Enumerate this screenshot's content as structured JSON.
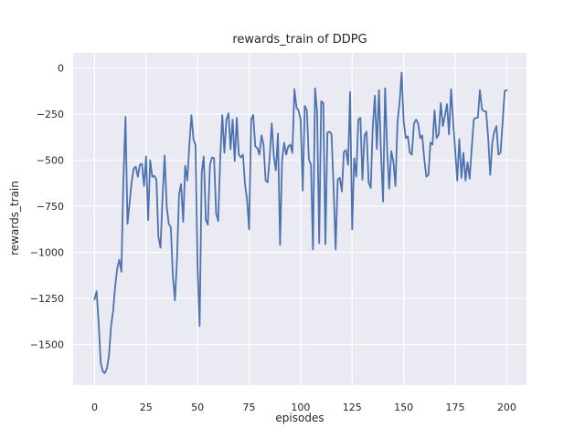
{
  "figure": {
    "title": "rewards_train of DDPG",
    "xlabel": "episodes",
    "ylabel": "rewards_train"
  },
  "chart_data": {
    "type": "line",
    "title": "rewards_train of DDPG",
    "xlabel": "episodes",
    "ylabel": "rewards_train",
    "x_start": 0,
    "x_step": 1,
    "xticks": [
      0,
      25,
      50,
      75,
      100,
      125,
      150,
      175,
      200
    ],
    "yticks": [
      0,
      -250,
      -500,
      -750,
      -1000,
      -1250,
      -1500
    ],
    "xlim": [
      -10.4,
      209.6
    ],
    "ylim": [
      -1720,
      82
    ],
    "grid": true,
    "legend_position": "none",
    "style": {
      "line_color": "#4C72B0",
      "plot_bg": "#EAEAF2",
      "grid_color": "#FFFFFF",
      "text_color": "#262626",
      "fig_bg": "#FFFFFF"
    },
    "values": [
      -1255,
      -1210,
      -1390,
      -1600,
      -1645,
      -1655,
      -1630,
      -1560,
      -1400,
      -1320,
      -1185,
      -1090,
      -1040,
      -1105,
      -610,
      -265,
      -845,
      -730,
      -620,
      -545,
      -535,
      -590,
      -525,
      -520,
      -640,
      -480,
      -825,
      -500,
      -590,
      -585,
      -605,
      -915,
      -975,
      -705,
      -475,
      -750,
      -845,
      -865,
      -1125,
      -1260,
      -1040,
      -685,
      -630,
      -835,
      -530,
      -610,
      -415,
      -255,
      -390,
      -415,
      -1090,
      -1400,
      -565,
      -480,
      -825,
      -850,
      -525,
      -485,
      -490,
      -790,
      -830,
      -480,
      -255,
      -460,
      -280,
      -245,
      -440,
      -280,
      -505,
      -270,
      -470,
      -485,
      -470,
      -630,
      -715,
      -875,
      -280,
      -255,
      -425,
      -435,
      -470,
      -365,
      -415,
      -610,
      -620,
      -480,
      -300,
      -480,
      -555,
      -355,
      -960,
      -500,
      -405,
      -470,
      -425,
      -415,
      -460,
      -115,
      -215,
      -230,
      -280,
      -665,
      -205,
      -230,
      -495,
      -525,
      -985,
      -110,
      -235,
      -950,
      -180,
      -190,
      -955,
      -350,
      -345,
      -360,
      -655,
      -985,
      -605,
      -595,
      -670,
      -455,
      -445,
      -525,
      -130,
      -875,
      -490,
      -590,
      -280,
      -270,
      -605,
      -365,
      -345,
      -620,
      -650,
      -320,
      -150,
      -440,
      -120,
      -460,
      -725,
      -110,
      -450,
      -655,
      -450,
      -510,
      -640,
      -290,
      -190,
      -25,
      -290,
      -380,
      -370,
      -460,
      -470,
      -300,
      -280,
      -300,
      -380,
      -365,
      -495,
      -590,
      -580,
      -405,
      -415,
      -230,
      -380,
      -360,
      -190,
      -315,
      -260,
      -195,
      -360,
      -115,
      -290,
      -445,
      -610,
      -385,
      -595,
      -460,
      -610,
      -510,
      -600,
      -440,
      -280,
      -270,
      -270,
      -120,
      -225,
      -235,
      -235,
      -380,
      -580,
      -405,
      -345,
      -315,
      -470,
      -460,
      -300,
      -125,
      -120
    ]
  }
}
